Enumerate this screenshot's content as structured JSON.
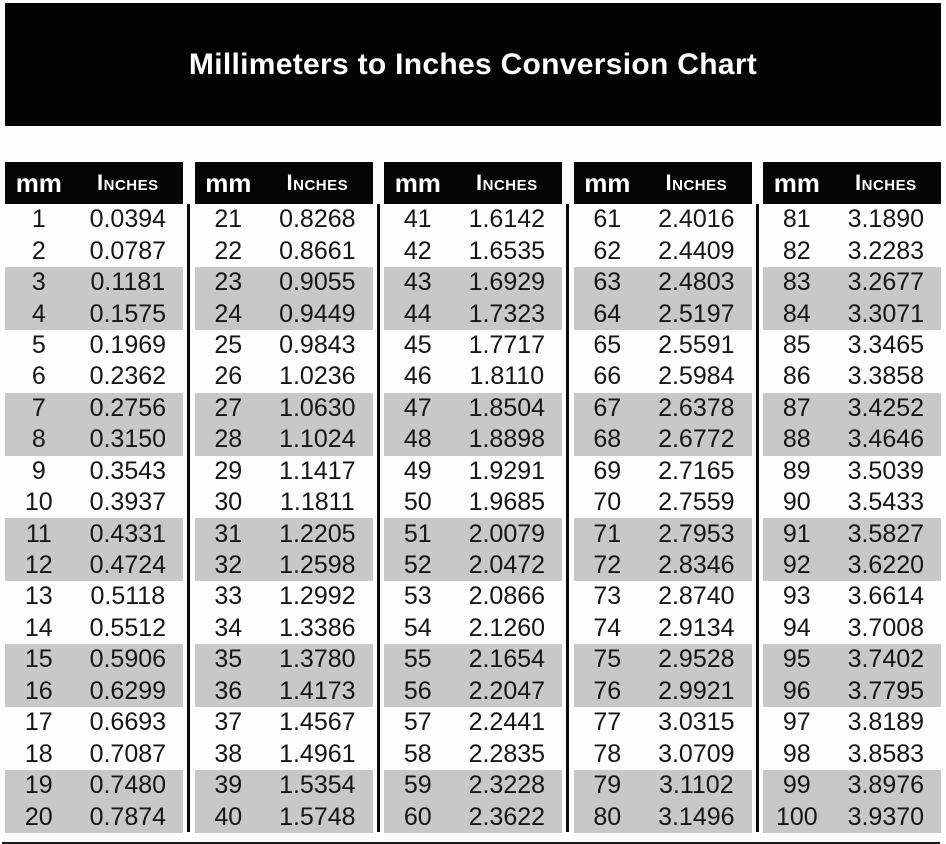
{
  "title": "Millimeters to Inches Conversion Chart",
  "columns": {
    "mm_label": "mm",
    "inches_label": "Inches"
  },
  "colors": {
    "banner_bg": "#030303",
    "header_bg": "#050505",
    "header_text": "#ffffff",
    "shaded_row": "#c8c8c8",
    "body_text": "#151515",
    "page_bg": "#fdfdfd"
  },
  "tables": [
    {
      "rows": [
        [
          "1",
          "0.0394"
        ],
        [
          "2",
          "0.0787"
        ],
        [
          "3",
          "0.1181"
        ],
        [
          "4",
          "0.1575"
        ],
        [
          "5",
          "0.1969"
        ],
        [
          "6",
          "0.2362"
        ],
        [
          "7",
          "0.2756"
        ],
        [
          "8",
          "0.3150"
        ],
        [
          "9",
          "0.3543"
        ],
        [
          "10",
          "0.3937"
        ],
        [
          "11",
          "0.4331"
        ],
        [
          "12",
          "0.4724"
        ],
        [
          "13",
          "0.5118"
        ],
        [
          "14",
          "0.5512"
        ],
        [
          "15",
          "0.5906"
        ],
        [
          "16",
          "0.6299"
        ],
        [
          "17",
          "0.6693"
        ],
        [
          "18",
          "0.7087"
        ],
        [
          "19",
          "0.7480"
        ],
        [
          "20",
          "0.7874"
        ]
      ]
    },
    {
      "rows": [
        [
          "21",
          "0.8268"
        ],
        [
          "22",
          "0.8661"
        ],
        [
          "23",
          "0.9055"
        ],
        [
          "24",
          "0.9449"
        ],
        [
          "25",
          "0.9843"
        ],
        [
          "26",
          "1.0236"
        ],
        [
          "27",
          "1.0630"
        ],
        [
          "28",
          "1.1024"
        ],
        [
          "29",
          "1.1417"
        ],
        [
          "30",
          "1.1811"
        ],
        [
          "31",
          "1.2205"
        ],
        [
          "32",
          "1.2598"
        ],
        [
          "33",
          "1.2992"
        ],
        [
          "34",
          "1.3386"
        ],
        [
          "35",
          "1.3780"
        ],
        [
          "36",
          "1.4173"
        ],
        [
          "37",
          "1.4567"
        ],
        [
          "38",
          "1.4961"
        ],
        [
          "39",
          "1.5354"
        ],
        [
          "40",
          "1.5748"
        ]
      ]
    },
    {
      "rows": [
        [
          "41",
          "1.6142"
        ],
        [
          "42",
          "1.6535"
        ],
        [
          "43",
          "1.6929"
        ],
        [
          "44",
          "1.7323"
        ],
        [
          "45",
          "1.7717"
        ],
        [
          "46",
          "1.8110"
        ],
        [
          "47",
          "1.8504"
        ],
        [
          "48",
          "1.8898"
        ],
        [
          "49",
          "1.9291"
        ],
        [
          "50",
          "1.9685"
        ],
        [
          "51",
          "2.0079"
        ],
        [
          "52",
          "2.0472"
        ],
        [
          "53",
          "2.0866"
        ],
        [
          "54",
          "2.1260"
        ],
        [
          "55",
          "2.1654"
        ],
        [
          "56",
          "2.2047"
        ],
        [
          "57",
          "2.2441"
        ],
        [
          "58",
          "2.2835"
        ],
        [
          "59",
          "2.3228"
        ],
        [
          "60",
          "2.3622"
        ]
      ]
    },
    {
      "rows": [
        [
          "61",
          "2.4016"
        ],
        [
          "62",
          "2.4409"
        ],
        [
          "63",
          "2.4803"
        ],
        [
          "64",
          "2.5197"
        ],
        [
          "65",
          "2.5591"
        ],
        [
          "66",
          "2.5984"
        ],
        [
          "67",
          "2.6378"
        ],
        [
          "68",
          "2.6772"
        ],
        [
          "69",
          "2.7165"
        ],
        [
          "70",
          "2.7559"
        ],
        [
          "71",
          "2.7953"
        ],
        [
          "72",
          "2.8346"
        ],
        [
          "73",
          "2.8740"
        ],
        [
          "74",
          "2.9134"
        ],
        [
          "75",
          "2.9528"
        ],
        [
          "76",
          "2.9921"
        ],
        [
          "77",
          "3.0315"
        ],
        [
          "78",
          "3.0709"
        ],
        [
          "79",
          "3.1102"
        ],
        [
          "80",
          "3.1496"
        ]
      ]
    },
    {
      "rows": [
        [
          "81",
          "3.1890"
        ],
        [
          "82",
          "3.2283"
        ],
        [
          "83",
          "3.2677"
        ],
        [
          "84",
          "3.3071"
        ],
        [
          "85",
          "3.3465"
        ],
        [
          "86",
          "3.3858"
        ],
        [
          "87",
          "3.4252"
        ],
        [
          "88",
          "3.4646"
        ],
        [
          "89",
          "3.5039"
        ],
        [
          "90",
          "3.5433"
        ],
        [
          "91",
          "3.5827"
        ],
        [
          "92",
          "3.6220"
        ],
        [
          "93",
          "3.6614"
        ],
        [
          "94",
          "3.7008"
        ],
        [
          "95",
          "3.7402"
        ],
        [
          "96",
          "3.7795"
        ],
        [
          "97",
          "3.8189"
        ],
        [
          "98",
          "3.8583"
        ],
        [
          "99",
          "3.8976"
        ],
        [
          "100",
          "3.9370"
        ]
      ]
    }
  ]
}
